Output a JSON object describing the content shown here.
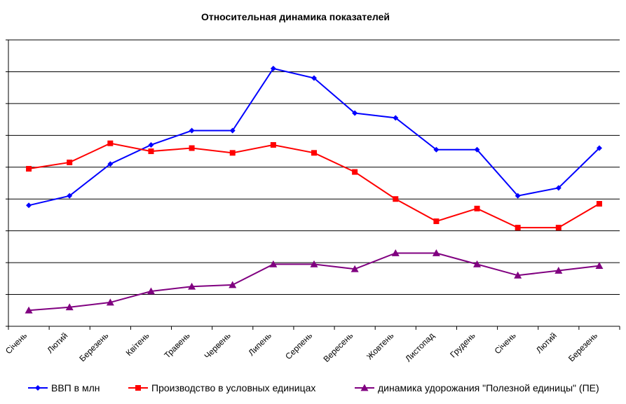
{
  "chart_data": {
    "type": "line",
    "title": "Относительная динамика показателей",
    "xlabel": "",
    "ylabel": "",
    "ylim": [
      0,
      9
    ],
    "grid": true,
    "legend_position": "bottom",
    "categories": [
      "Січень",
      "Лютий",
      "Березень",
      "Квітень",
      "Травень",
      "Червень",
      "Липень",
      "Серпень",
      "Вересень",
      "Жовтень",
      "Листопад",
      "Грудень",
      "Січень",
      "Лютий",
      "Березень"
    ],
    "series": [
      {
        "name": "ВВП в млн",
        "color": "#0000ff",
        "marker": "diamond",
        "values": [
          3.8,
          4.1,
          5.1,
          5.7,
          6.15,
          6.15,
          8.1,
          7.8,
          6.7,
          6.55,
          5.55,
          5.55,
          4.1,
          4.35,
          5.6
        ]
      },
      {
        "name": "Производство в условных единицах",
        "color": "#ff0000",
        "marker": "square",
        "values": [
          4.95,
          5.15,
          5.75,
          5.5,
          5.6,
          5.45,
          5.7,
          5.45,
          4.85,
          4.0,
          3.3,
          3.7,
          3.1,
          3.1,
          3.85
        ]
      },
      {
        "name": "динамика удорожания \"Полезной единицы\" (ПЕ)",
        "color": "#800080",
        "marker": "triangle",
        "values": [
          0.5,
          0.6,
          0.75,
          1.1,
          1.25,
          1.3,
          1.95,
          1.95,
          1.8,
          2.3,
          2.3,
          1.95,
          1.6,
          1.75,
          1.9
        ]
      }
    ]
  }
}
